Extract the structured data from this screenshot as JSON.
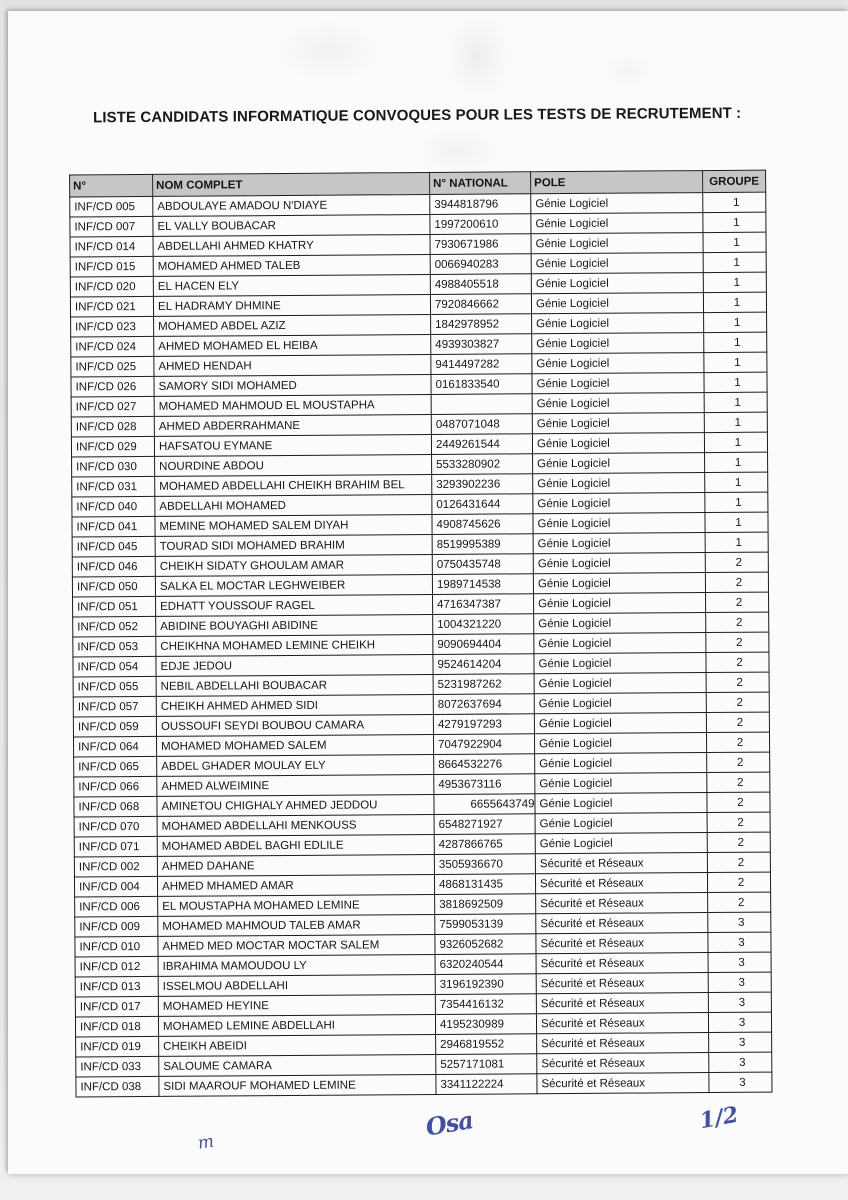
{
  "document": {
    "title": "LISTE CANDIDATS INFORMATIQUE CONVOQUES POUR LES TESTS DE RECRUTEMENT :"
  },
  "table": {
    "headers": [
      "N°",
      "NOM COMPLET",
      "N° NATIONAL",
      "POLE",
      "GROUPE"
    ],
    "rows": [
      {
        "no": "INF/CD 005",
        "nom": "ABDOULAYE AMADOU N'DIAYE",
        "national": "3944818796",
        "pole": "Génie Logiciel",
        "groupe": "1"
      },
      {
        "no": "INF/CD 007",
        "nom": "EL VALLY BOUBACAR",
        "national": "1997200610",
        "pole": "Génie Logiciel",
        "groupe": "1"
      },
      {
        "no": "INF/CD 014",
        "nom": "ABDELLAHI AHMED KHATRY",
        "national": "7930671986",
        "pole": "Génie Logiciel",
        "groupe": "1"
      },
      {
        "no": "INF/CD 015",
        "nom": "MOHAMED AHMED TALEB",
        "national": "0066940283",
        "pole": "Génie Logiciel",
        "groupe": "1"
      },
      {
        "no": "INF/CD 020",
        "nom": "EL HACEN ELY",
        "national": "4988405518",
        "pole": "Génie Logiciel",
        "groupe": "1"
      },
      {
        "no": "INF/CD 021",
        "nom": "EL HADRAMY DHMINE",
        "national": "7920846662",
        "pole": "Génie Logiciel",
        "groupe": "1"
      },
      {
        "no": "INF/CD 023",
        "nom": "MOHAMED ABDEL AZIZ",
        "national": "1842978952",
        "pole": "Génie Logiciel",
        "groupe": "1"
      },
      {
        "no": "INF/CD 024",
        "nom": "AHMED MOHAMED EL HEIBA",
        "national": "4939303827",
        "pole": "Génie Logiciel",
        "groupe": "1"
      },
      {
        "no": "INF/CD 025",
        "nom": "AHMED HENDAH",
        "national": "9414497282",
        "pole": "Génie Logiciel",
        "groupe": "1"
      },
      {
        "no": "INF/CD 026",
        "nom": "SAMORY SIDI MOHAMED",
        "national": "0161833540",
        "pole": "Génie Logiciel",
        "groupe": "1"
      },
      {
        "no": "INF/CD 027",
        "nom": "MOHAMED MAHMOUD EL MOUSTAPHA",
        "national": "",
        "pole": "Génie Logiciel",
        "groupe": "1"
      },
      {
        "no": "INF/CD 028",
        "nom": "AHMED ABDERRAHMANE",
        "national": "0487071048",
        "pole": "Génie Logiciel",
        "groupe": "1"
      },
      {
        "no": "INF/CD 029",
        "nom": "HAFSATOU EYMANE",
        "national": "2449261544",
        "pole": "Génie Logiciel",
        "groupe": "1"
      },
      {
        "no": "INF/CD 030",
        "nom": "NOURDINE ABDOU",
        "national": "5533280902",
        "pole": "Génie Logiciel",
        "groupe": "1"
      },
      {
        "no": "INF/CD 031",
        "nom": "MOHAMED ABDELLAHI CHEIKH BRAHIM BEL",
        "national": "3293902236",
        "pole": "Génie Logiciel",
        "groupe": "1"
      },
      {
        "no": "INF/CD 040",
        "nom": "ABDELLAHI MOHAMED",
        "national": "0126431644",
        "pole": "Génie Logiciel",
        "groupe": "1"
      },
      {
        "no": "INF/CD 041",
        "nom": "MEMINE MOHAMED SALEM DIYAH",
        "national": "4908745626",
        "pole": "Génie Logiciel",
        "groupe": "1"
      },
      {
        "no": "INF/CD 045",
        "nom": "TOURAD SIDI MOHAMED BRAHIM",
        "national": "8519995389",
        "pole": "Génie Logiciel",
        "groupe": "1"
      },
      {
        "no": "INF/CD 046",
        "nom": "CHEIKH SIDATY GHOULAM AMAR",
        "national": "0750435748",
        "pole": "Génie Logiciel",
        "groupe": "2"
      },
      {
        "no": "INF/CD 050",
        "nom": "SALKA EL MOCTAR LEGHWEIBER",
        "national": "1989714538",
        "pole": "Génie Logiciel",
        "groupe": "2"
      },
      {
        "no": "INF/CD 051",
        "nom": "EDHATT YOUSSOUF RAGEL",
        "national": "4716347387",
        "pole": "Génie Logiciel",
        "groupe": "2"
      },
      {
        "no": "INF/CD 052",
        "nom": "ABIDINE BOUYAGHI ABIDINE",
        "national": "1004321220",
        "pole": "Génie Logiciel",
        "groupe": "2"
      },
      {
        "no": "INF/CD 053",
        "nom": "CHEIKHNA MOHAMED LEMINE CHEIKH",
        "national": "9090694404",
        "pole": "Génie Logiciel",
        "groupe": "2"
      },
      {
        "no": "INF/CD 054",
        "nom": "EDJE JEDOU",
        "national": "9524614204",
        "pole": "Génie Logiciel",
        "groupe": "2"
      },
      {
        "no": "INF/CD 055",
        "nom": "NEBIL ABDELLAHI BOUBACAR",
        "national": "5231987262",
        "pole": "Génie Logiciel",
        "groupe": "2"
      },
      {
        "no": "INF/CD 057",
        "nom": "CHEIKH AHMED AHMED SIDI",
        "national": "8072637694",
        "pole": "Génie Logiciel",
        "groupe": "2"
      },
      {
        "no": "INF/CD 059",
        "nom": "OUSSOUFI SEYDI BOUBOU CAMARA",
        "national": "4279197293",
        "pole": "Génie Logiciel",
        "groupe": "2"
      },
      {
        "no": "INF/CD 064",
        "nom": "MOHAMED MOHAMED SALEM",
        "national": "7047922904",
        "pole": "Génie Logiciel",
        "groupe": "2"
      },
      {
        "no": "INF/CD 065",
        "nom": "ABDEL GHADER MOULAY ELY",
        "national": "8664532276",
        "pole": "Génie Logiciel",
        "groupe": "2"
      },
      {
        "no": "INF/CD 066",
        "nom": "AHMED ALWEIMINE",
        "national": "4953673116",
        "pole": "Génie Logiciel",
        "groupe": "2"
      },
      {
        "no": "INF/CD 068",
        "nom": "AMINETOU CHIGHALY AHMED JEDDOU",
        "national": "6655643749",
        "pole": "Génie Logiciel",
        "groupe": "2",
        "align": {
          "national": "right"
        }
      },
      {
        "no": "INF/CD 070",
        "nom": "MOHAMED ABDELLAHI MENKOUSS",
        "national": "6548271927",
        "pole": "Génie Logiciel",
        "groupe": "2"
      },
      {
        "no": "INF/CD 071",
        "nom": "MOHAMED ABDEL BAGHI EDLILE",
        "national": "4287866765",
        "pole": "Génie Logiciel",
        "groupe": "2"
      },
      {
        "no": "INF/CD 002",
        "nom": "AHMED DAHANE",
        "national": "3505936670",
        "pole": "Sécurité et Réseaux",
        "groupe": "2"
      },
      {
        "no": "INF/CD 004",
        "nom": "AHMED MHAMED AMAR",
        "national": "4868131435",
        "pole": "Sécurité et Réseaux",
        "groupe": "2"
      },
      {
        "no": "INF/CD 006",
        "nom": "EL MOUSTAPHA MOHAMED LEMINE",
        "national": "3818692509",
        "pole": "Sécurité et Réseaux",
        "groupe": "2"
      },
      {
        "no": "INF/CD 009",
        "nom": "MOHAMED MAHMOUD TALEB AMAR",
        "national": "7599053139",
        "pole": "Sécurité et Réseaux",
        "groupe": "3"
      },
      {
        "no": "INF/CD 010",
        "nom": "AHMED MED MOCTAR MOCTAR SALEM",
        "national": "9326052682",
        "pole": "Sécurité et Réseaux",
        "groupe": "3"
      },
      {
        "no": "INF/CD 012",
        "nom": "IBRAHIMA MAMOUDOU LY",
        "national": "6320240544",
        "pole": "Sécurité et Réseaux",
        "groupe": "3"
      },
      {
        "no": "INF/CD 013",
        "nom": "ISSELMOU ABDELLAHI",
        "national": "3196192390",
        "pole": "Sécurité et Réseaux",
        "groupe": "3"
      },
      {
        "no": "INF/CD 017",
        "nom": "MOHAMED HEYINE",
        "national": "7354416132",
        "pole": "Sécurité et Réseaux",
        "groupe": "3"
      },
      {
        "no": "INF/CD 018",
        "nom": "MOHAMED LEMINE ABDELLAHI",
        "national": "4195230989",
        "pole": "Sécurité et Réseaux",
        "groupe": "3"
      },
      {
        "no": "INF/CD 019",
        "nom": "CHEIKH ABEIDI",
        "national": "2946819552",
        "pole": "Sécurité et Réseaux",
        "groupe": "3"
      },
      {
        "no": "INF/CD 033",
        "nom": "SALOUME CAMARA",
        "national": "5257171081",
        "pole": "Sécurité et Réseaux",
        "groupe": "3"
      },
      {
        "no": "INF/CD 038",
        "nom": "SIDI MAAROUF MOHAMED LEMINE",
        "national": "3341122224",
        "pole": "Sécurité et Réseaux",
        "groupe": "3"
      }
    ]
  },
  "annotations": {
    "left_mark": "m",
    "signature": "Osa",
    "page_fraction": "1/2"
  },
  "colors": {
    "header_bg": "#c7c5c6",
    "border": "#1c1c1c",
    "paper": "#fbfbfb",
    "backdrop": "#e6e6e9",
    "ink_blue": "#4050a8"
  }
}
